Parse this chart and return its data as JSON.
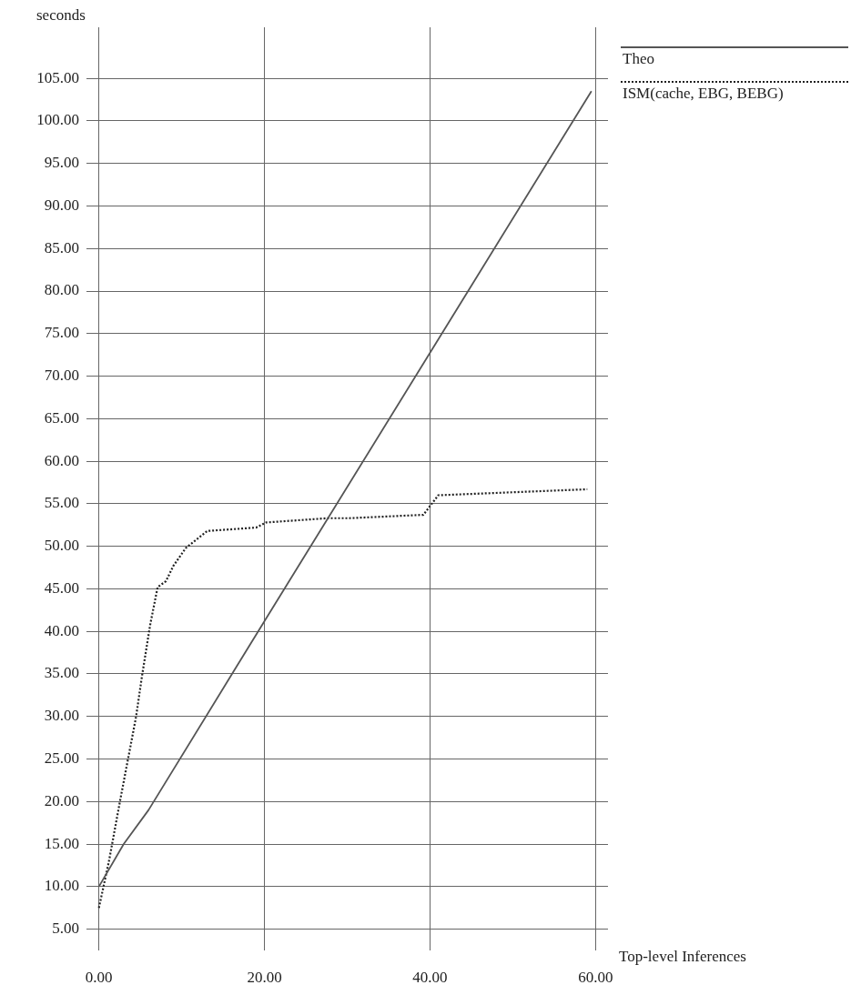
{
  "chart_data": {
    "type": "line",
    "xlabel": "Top-level Inferences",
    "ylabel": "seconds",
    "legend": "top right",
    "grid": true,
    "marker": "none",
    "xlim": [
      -1.5,
      61.5
    ],
    "ylim": [
      2.5,
      111
    ],
    "xticks": [
      {
        "value": 0,
        "label": "0.00"
      },
      {
        "value": 20,
        "label": "20.00"
      },
      {
        "value": 40,
        "label": "40.00"
      },
      {
        "value": 60,
        "label": "60.00"
      }
    ],
    "yticks": [
      {
        "value": 5,
        "label": "5.00"
      },
      {
        "value": 10,
        "label": "10.00"
      },
      {
        "value": 15,
        "label": "15.00"
      },
      {
        "value": 20,
        "label": "20.00"
      },
      {
        "value": 25,
        "label": "25.00"
      },
      {
        "value": 30,
        "label": "30.00"
      },
      {
        "value": 35,
        "label": "35.00"
      },
      {
        "value": 40,
        "label": "40.00"
      },
      {
        "value": 45,
        "label": "45.00"
      },
      {
        "value": 50,
        "label": "50.00"
      },
      {
        "value": 55,
        "label": "55.00"
      },
      {
        "value": 60,
        "label": "60.00"
      },
      {
        "value": 65,
        "label": "65.00"
      },
      {
        "value": 70,
        "label": "70.00"
      },
      {
        "value": 75,
        "label": "75.00"
      },
      {
        "value": 80,
        "label": "80.00"
      },
      {
        "value": 85,
        "label": "85.00"
      },
      {
        "value": 90,
        "label": "90.00"
      },
      {
        "value": 95,
        "label": "95.00"
      },
      {
        "value": 100,
        "label": "100.00"
      },
      {
        "value": 105,
        "label": "105.00"
      }
    ],
    "series": [
      {
        "name": "Theo",
        "color": "#555555",
        "line_style": "solid",
        "x": [
          0,
          3,
          6,
          20,
          59.5
        ],
        "values": [
          10,
          15,
          19,
          41.2,
          103.5
        ]
      },
      {
        "name": "ISM(cache, EBG, BEBG)",
        "color": "#222222",
        "line_style": "dotted",
        "x": [
          0,
          1.2,
          2.6,
          3.6,
          4.5,
          5.2,
          6.2,
          7.1,
          8.1,
          9,
          10.5,
          13.1,
          19,
          20.2,
          27.6,
          30.2,
          39.2,
          41,
          59
        ],
        "values": [
          7.5,
          12.9,
          20.3,
          25.4,
          30,
          34.7,
          40.8,
          45.2,
          45.9,
          47.7,
          49.8,
          51.8,
          52.2,
          52.8,
          53.3,
          53.3,
          53.7,
          56,
          56.7
        ]
      }
    ]
  }
}
